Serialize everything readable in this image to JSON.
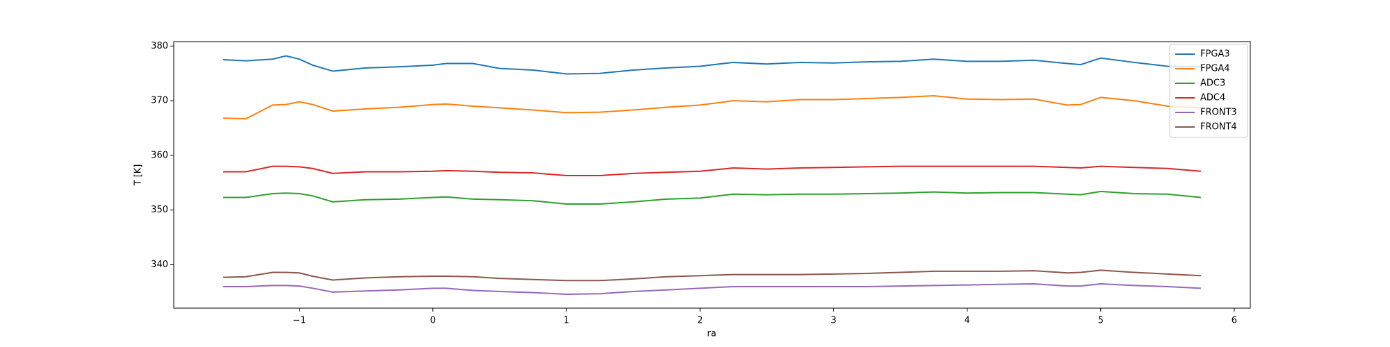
{
  "chart_data": {
    "type": "line",
    "xlabel": "ra",
    "ylabel": "T [K]",
    "x": [
      -1.57,
      -1.4,
      -1.2,
      -1.1,
      -1.0,
      -0.9,
      -0.75,
      -0.5,
      -0.25,
      0,
      0.1,
      0.3,
      0.5,
      0.75,
      1.0,
      1.25,
      1.5,
      1.75,
      2.0,
      2.25,
      2.5,
      2.75,
      3.0,
      3.25,
      3.5,
      3.75,
      4.0,
      4.25,
      4.5,
      4.75,
      4.85,
      5.0,
      5.25,
      5.5,
      5.75
    ],
    "series": [
      {
        "name": "FPGA3",
        "color": "#1f77b4",
        "values": [
          377.5,
          377.3,
          377.6,
          378.2,
          377.6,
          376.5,
          375.4,
          376,
          376.2,
          376.5,
          376.8,
          376.8,
          375.9,
          375.6,
          374.9,
          375,
          375.6,
          376,
          376.3,
          377,
          376.7,
          377,
          376.9,
          377.1,
          377.2,
          377.6,
          377.2,
          377.2,
          377.4,
          376.8,
          376.6,
          377.8,
          377,
          376.3,
          376.2
        ]
      },
      {
        "name": "FPGA4",
        "color": "#ff7f0e",
        "values": [
          366.8,
          366.7,
          369.2,
          369.3,
          369.8,
          369.3,
          368.1,
          368.5,
          368.8,
          369.3,
          369.4,
          369,
          368.7,
          368.3,
          367.8,
          367.9,
          368.3,
          368.8,
          369.2,
          370,
          369.8,
          370.2,
          370.2,
          370.4,
          370.6,
          370.9,
          370.3,
          370.2,
          370.3,
          369.2,
          369.3,
          370.6,
          370,
          369,
          368.7
        ]
      },
      {
        "name": "ADC3",
        "color": "#2ca02c",
        "values": [
          352.3,
          352.3,
          353,
          353.1,
          353,
          352.6,
          351.5,
          351.9,
          352,
          352.3,
          352.4,
          352,
          351.9,
          351.7,
          351.1,
          351.1,
          351.5,
          352,
          352.2,
          352.9,
          352.8,
          352.9,
          352.9,
          353,
          353.1,
          353.3,
          353.1,
          353.2,
          353.2,
          352.9,
          352.8,
          353.4,
          353,
          352.9,
          352.3
        ]
      },
      {
        "name": "ADC4",
        "color": "#d62728",
        "values": [
          357,
          357,
          358,
          358,
          357.9,
          357.6,
          356.7,
          357,
          357,
          357.1,
          357.2,
          357.1,
          356.9,
          356.8,
          356.3,
          356.3,
          356.7,
          356.9,
          357.1,
          357.7,
          357.5,
          357.7,
          357.8,
          357.9,
          358,
          358,
          358,
          358,
          358,
          357.8,
          357.7,
          358,
          357.8,
          357.6,
          357.1
        ]
      },
      {
        "name": "FRONT3",
        "color": "#9467bd",
        "values": [
          336,
          336,
          336.2,
          336.2,
          336.1,
          335.7,
          335,
          335.2,
          335.4,
          335.7,
          335.7,
          335.3,
          335.1,
          334.9,
          334.6,
          334.7,
          335.1,
          335.4,
          335.7,
          336,
          336,
          336,
          336,
          336,
          336.1,
          336.2,
          336.3,
          336.4,
          336.5,
          336.1,
          336.1,
          336.5,
          336.2,
          336,
          335.7
        ]
      },
      {
        "name": "FRONT4",
        "color": "#8c564b",
        "values": [
          337.7,
          337.8,
          338.6,
          338.6,
          338.5,
          337.9,
          337.2,
          337.6,
          337.8,
          337.9,
          337.9,
          337.8,
          337.5,
          337.3,
          337.1,
          337.1,
          337.4,
          337.8,
          338,
          338.2,
          338.2,
          338.2,
          338.3,
          338.4,
          338.6,
          338.8,
          338.8,
          338.8,
          338.9,
          338.5,
          338.6,
          339,
          338.6,
          338.3,
          338
        ]
      }
    ],
    "xlim": [
      -1.94,
      6.12
    ],
    "xticks": [
      {
        "value": -1,
        "label": "−1"
      },
      0,
      1,
      2,
      3,
      4,
      5,
      6
    ],
    "ylim": [
      332.06,
      380.8
    ],
    "yticks": [
      340,
      350,
      360,
      370,
      380
    ],
    "grid": false,
    "legend": "upper right"
  }
}
